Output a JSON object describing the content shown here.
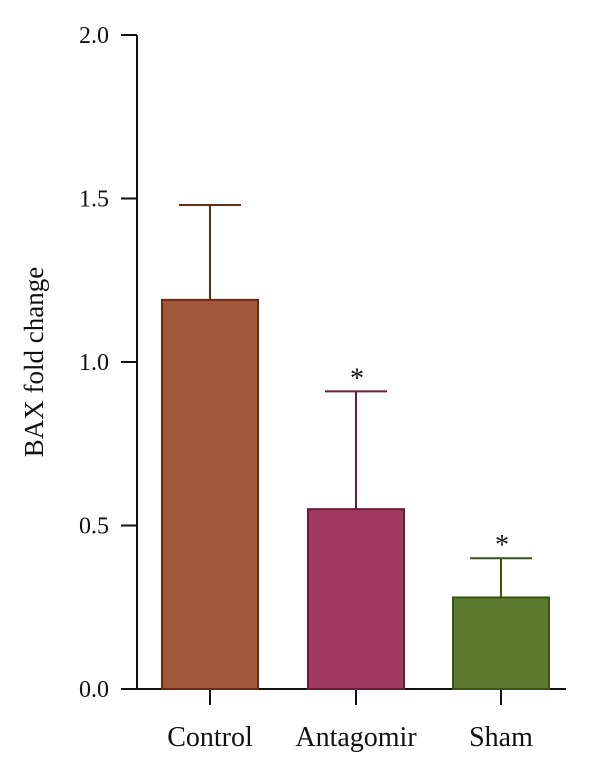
{
  "chart_data": {
    "type": "bar",
    "title": "",
    "xlabel": "",
    "ylabel": "BAX fold change",
    "ylim": [
      0,
      2.0
    ],
    "yticks": [
      0.0,
      0.5,
      1.0,
      1.5,
      2.0
    ],
    "ytick_labels": [
      "0.0",
      "0.5",
      "1.0",
      "1.5",
      "2.0"
    ],
    "categories": [
      "Control",
      "Antagomir",
      "Sham"
    ],
    "values": [
      1.19,
      0.55,
      0.28
    ],
    "errors": [
      0.29,
      0.36,
      0.12
    ],
    "significance": [
      "",
      "*",
      "*"
    ],
    "colors": [
      "#a3573b",
      "#a13a5f",
      "#5a7a2e"
    ],
    "edge_colors": [
      "#6b2a12",
      "#6b1a3a",
      "#3a5218"
    ],
    "grid": false,
    "legend": "none"
  }
}
